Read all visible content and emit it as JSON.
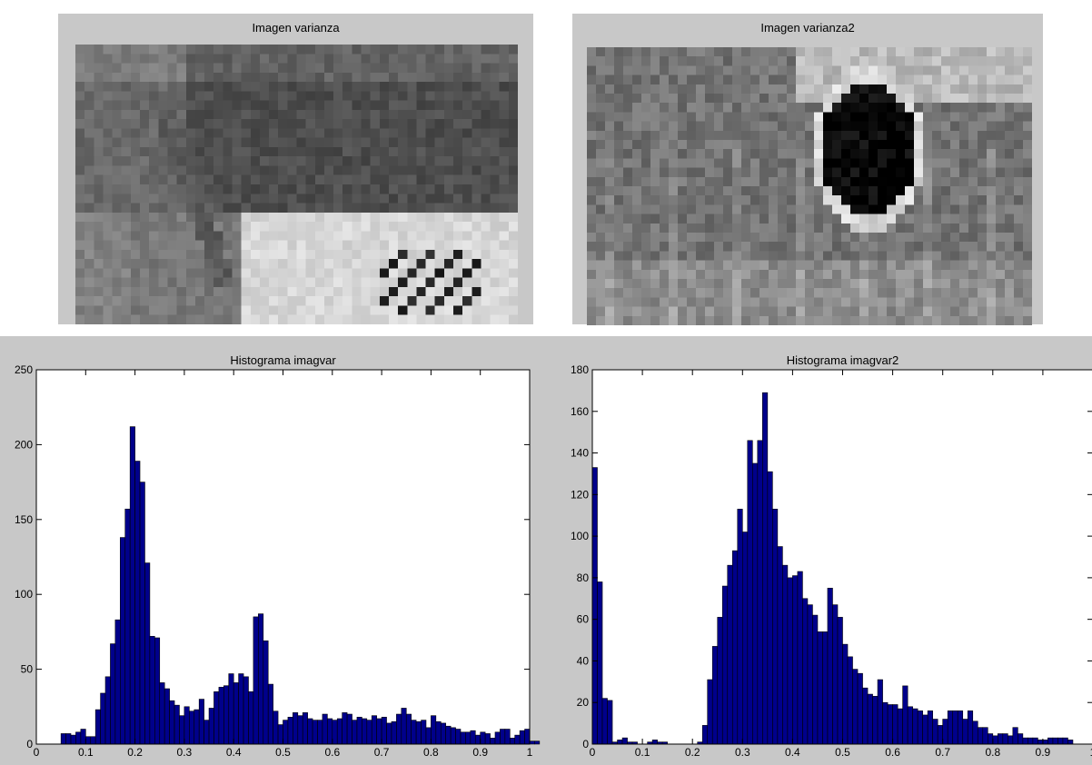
{
  "figure": {
    "images": [
      {
        "title": "Imagen varianza"
      },
      {
        "title": "Imagen varianza2"
      }
    ]
  },
  "chart_data": [
    {
      "type": "bar",
      "title": "Histograma imagvar",
      "xlim": [
        0,
        1
      ],
      "ylim": [
        0,
        250
      ],
      "xticks": [
        "0",
        "0.1",
        "0.2",
        "0.3",
        "0.4",
        "0.5",
        "0.6",
        "0.7",
        "0.8",
        "0.9",
        "1"
      ],
      "yticks": [
        "0",
        "50",
        "100",
        "150",
        "200",
        "250"
      ],
      "bin_width": 0.01,
      "bin_start": 0.05,
      "bar_color": "#00008b",
      "edge_color": "#000000",
      "values": [
        7,
        7,
        6,
        8,
        10,
        5,
        5,
        23,
        34,
        45,
        67,
        83,
        138,
        157,
        212,
        189,
        175,
        121,
        72,
        71,
        41,
        37,
        29,
        26,
        19,
        25,
        22,
        23,
        30,
        16,
        24,
        35,
        38,
        39,
        47,
        41,
        47,
        45,
        35,
        85,
        87,
        69,
        40,
        22,
        13,
        16,
        18,
        21,
        19,
        21,
        17,
        16,
        16,
        20,
        17,
        16,
        17,
        21,
        20,
        16,
        18,
        17,
        16,
        19,
        17,
        18,
        14,
        15,
        20,
        24,
        20,
        16,
        15,
        16,
        11,
        19,
        15,
        14,
        12,
        11,
        10,
        8,
        8,
        9,
        6,
        8,
        7,
        4,
        8,
        10,
        10,
        4,
        6,
        9,
        10,
        2,
        2,
        0,
        0,
        0,
        0,
        0,
        0,
        0,
        0,
        1
      ]
    },
    {
      "type": "bar",
      "title": "Histograma imagvar2",
      "xlim": [
        0,
        1
      ],
      "ylim": [
        0,
        180
      ],
      "xticks": [
        "0",
        "0.1",
        "0.2",
        "0.3",
        "0.4",
        "0.5",
        "0.6",
        "0.7",
        "0.8",
        "0.9",
        "1"
      ],
      "yticks": [
        "0",
        "20",
        "40",
        "60",
        "80",
        "100",
        "120",
        "140",
        "160",
        "180"
      ],
      "bin_width": 0.01,
      "bin_start": 0.0,
      "bar_color": "#00008b",
      "edge_color": "#000000",
      "values": [
        133,
        78,
        22,
        21,
        1,
        2,
        3,
        1,
        1,
        0,
        0,
        1,
        2,
        1,
        1,
        0,
        0,
        0,
        0,
        0,
        0,
        1,
        9,
        31,
        47,
        61,
        76,
        86,
        93,
        113,
        102,
        146,
        135,
        146,
        169,
        131,
        113,
        95,
        86,
        80,
        81,
        83,
        70,
        67,
        62,
        54,
        54,
        75,
        67,
        61,
        48,
        42,
        36,
        34,
        27,
        24,
        23,
        31,
        20,
        19,
        19,
        17,
        28,
        18,
        17,
        16,
        14,
        16,
        12,
        9,
        12,
        16,
        16,
        16,
        12,
        16,
        11,
        8,
        8,
        5,
        4,
        5,
        5,
        4,
        8,
        5,
        3,
        3,
        3,
        2,
        2,
        3,
        3,
        3,
        3,
        2,
        0,
        0,
        0,
        0
      ]
    }
  ]
}
